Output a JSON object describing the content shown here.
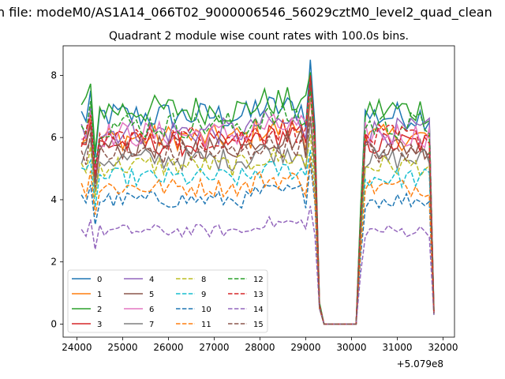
{
  "header": {
    "supertitle": "n file: modeM0/AS1A14_066T02_9000006546_56029cztM0_level2_quad_clean",
    "title": "Quadrant 2 module wise count rates with 100.0s bins."
  },
  "colors": {
    "palette": [
      "#1f77b4",
      "#ff7f0e",
      "#2ca02c",
      "#d62728",
      "#9467bd",
      "#8c564b",
      "#e377c2",
      "#7f7f7f",
      "#bcbd22",
      "#17becf"
    ]
  },
  "chart_data": {
    "type": "line",
    "title": "Quadrant 2 module wise count rates with 100.0s bins.",
    "xlabel": "",
    "ylabel": "",
    "x_offset_label": "+5.079e8",
    "xlim": [
      23700,
      32250
    ],
    "ylim": [
      -0.42,
      8.95
    ],
    "xticks": [
      24000,
      25000,
      26000,
      27000,
      28000,
      29000,
      30000,
      31000,
      32000
    ],
    "yticks": [
      0,
      2,
      4,
      6,
      8
    ],
    "grid": false,
    "legend": {
      "placement": "lower-left",
      "columns": 4
    },
    "x_segments": [
      {
        "start": 24100,
        "end": 29300,
        "step": 100
      },
      {
        "start": 29400,
        "end": 30100,
        "step": 100
      },
      {
        "start": 30200,
        "end": 31800,
        "step": 100
      }
    ],
    "series": [
      {
        "name": "0",
        "level": 6.7,
        "peak": 8.5,
        "final": 0.45,
        "style": "solid"
      },
      {
        "name": "1",
        "level": 6.0,
        "peak": 7.3,
        "final": 0.4,
        "style": "solid"
      },
      {
        "name": "2",
        "level": 6.9,
        "peak": 8.1,
        "final": 0.5,
        "style": "solid"
      },
      {
        "name": "3",
        "level": 5.8,
        "peak": 7.9,
        "final": 0.4,
        "style": "solid"
      },
      {
        "name": "4",
        "level": 6.2,
        "peak": 7.6,
        "final": 0.35,
        "style": "solid"
      },
      {
        "name": "5",
        "level": 5.7,
        "peak": 7.8,
        "final": 0.35,
        "style": "solid"
      },
      {
        "name": "6",
        "level": 6.1,
        "peak": 7.4,
        "final": 0.4,
        "style": "solid"
      },
      {
        "name": "7",
        "level": 5.3,
        "peak": 6.6,
        "final": 0.3,
        "style": "solid"
      },
      {
        "name": "8",
        "level": 5.1,
        "peak": 6.1,
        "final": 0.3,
        "style": "dashed"
      },
      {
        "name": "9",
        "level": 4.7,
        "peak": 5.6,
        "final": 0.3,
        "style": "dashed"
      },
      {
        "name": "10",
        "level": 4.0,
        "peak": 5.2,
        "final": 0.3,
        "style": "dashed"
      },
      {
        "name": "11",
        "level": 4.4,
        "peak": 5.4,
        "final": 0.3,
        "style": "dashed"
      },
      {
        "name": "12",
        "level": 6.4,
        "peak": 7.5,
        "final": 0.4,
        "style": "dashed"
      },
      {
        "name": "13",
        "level": 6.0,
        "peak": 8.0,
        "final": 0.4,
        "style": "dashed"
      },
      {
        "name": "14",
        "level": 3.0,
        "peak": 3.8,
        "final": 0.3,
        "style": "dashed"
      },
      {
        "name": "15",
        "level": 5.5,
        "peak": 6.7,
        "final": 0.35,
        "style": "dashed"
      }
    ]
  }
}
